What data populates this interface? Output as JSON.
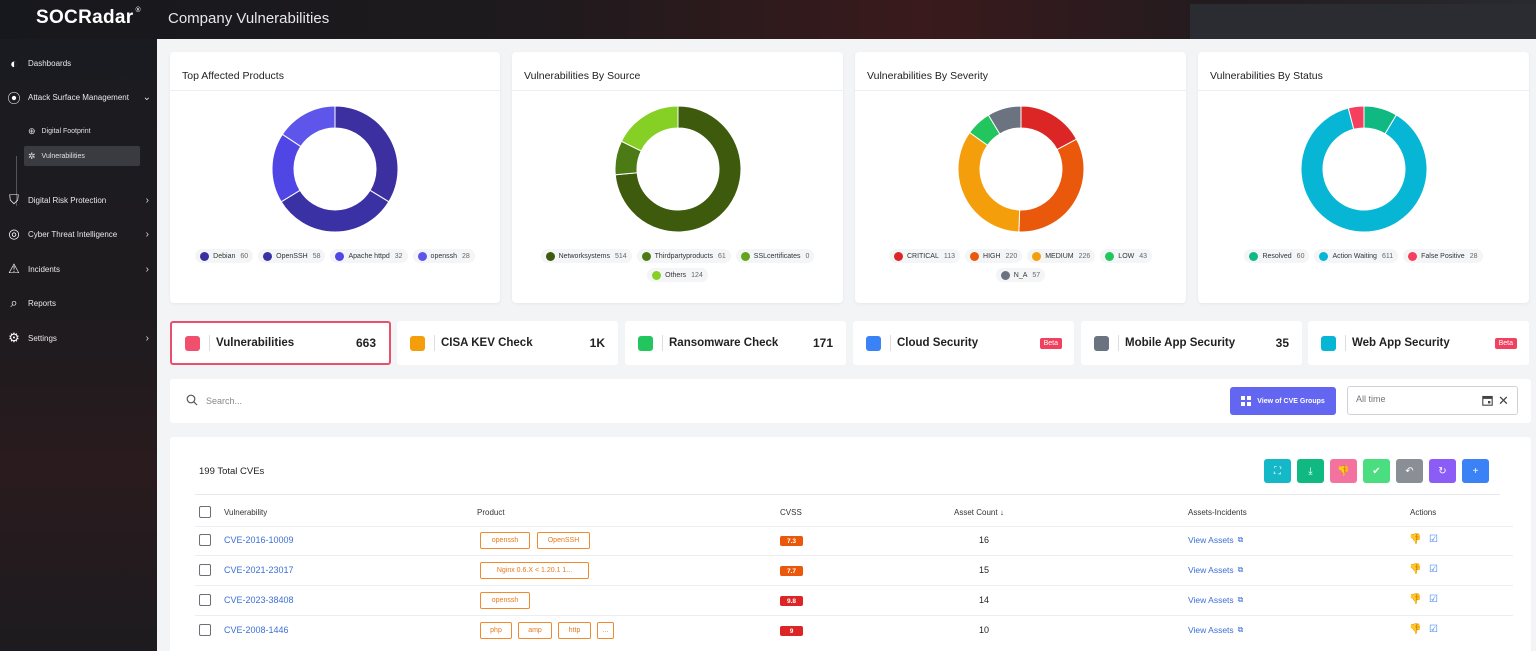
{
  "header": {
    "logo": "SOCRadar",
    "logo_mark": "®",
    "page_title": "Company Vulnerabilities"
  },
  "sidebar": {
    "items": [
      {
        "label": "Dashboards",
        "icon": "dashboard-icon"
      },
      {
        "label": "Attack Surface Management",
        "icon": "attack-surface-icon",
        "expanded": true
      },
      {
        "label": "Digital Risk Protection",
        "icon": "shield-icon"
      },
      {
        "label": "Cyber Threat Intelligence",
        "icon": "target-icon"
      },
      {
        "label": "Incidents",
        "icon": "alert-icon"
      },
      {
        "label": "Reports",
        "icon": "reports-icon"
      },
      {
        "label": "Settings",
        "icon": "gear-icon"
      }
    ],
    "sub_items": [
      {
        "label": "Digital Footprint",
        "icon": "globe-icon"
      },
      {
        "label": "Vulnerabilities",
        "icon": "bug-icon",
        "active": true
      }
    ]
  },
  "chart_data": [
    {
      "type": "pie",
      "title": "Top Affected Products",
      "labels": [
        "Debian",
        "OpenSSH",
        "Apache httpd",
        "openssh"
      ],
      "values": [
        60,
        58,
        32,
        28
      ],
      "colors": [
        "#3c2fa0",
        "#3a31a5",
        "#4f46e5",
        "#5e55ea"
      ]
    },
    {
      "type": "pie",
      "title": "Vulnerabilities By Source",
      "labels": [
        "Networksystems",
        "Thirdpartyproducts",
        "SSLcertificates",
        "Others"
      ],
      "values": [
        514,
        61,
        0,
        124
      ],
      "colors": [
        "#3d5a0d",
        "#4c7a14",
        "#64a31b",
        "#86cf24"
      ]
    },
    {
      "type": "pie",
      "title": "Vulnerabilities By Severity",
      "labels": [
        "CRITICAL",
        "HIGH",
        "MEDIUM",
        "LOW",
        "N_A"
      ],
      "values": [
        113,
        220,
        226,
        43,
        57
      ],
      "colors": [
        "#dc2626",
        "#ea580c",
        "#f59e0b",
        "#22c55e",
        "#6b7280"
      ]
    },
    {
      "type": "pie",
      "title": "Vulnerabilities By Status",
      "labels": [
        "Resolved",
        "Action Waiting",
        "False Positive"
      ],
      "values": [
        60,
        611,
        28
      ],
      "colors": [
        "#10b981",
        "#06b6d4",
        "#f43f5e"
      ]
    }
  ],
  "stats": [
    {
      "label": "Vulnerabilities",
      "count": "663",
      "color": "#f0506e",
      "active": true
    },
    {
      "label": "CISA KEV Check",
      "count": "1K",
      "color": "#f59e0b"
    },
    {
      "label": "Ransomware Check",
      "count": "171",
      "color": "#22c55e"
    },
    {
      "label": "Cloud Security",
      "badge": "Beta",
      "color": "#3b82f6"
    },
    {
      "label": "Mobile App Security",
      "count": "35",
      "color": "#6b7280"
    },
    {
      "label": "Web App Security",
      "badge": "Beta",
      "color": "#06b6d4"
    }
  ],
  "search": {
    "placeholder": "Search...",
    "cve_groups_label": "View of CVE Groups",
    "date_placeholder": "All time"
  },
  "table": {
    "total_label": "199 Total CVEs",
    "columns": [
      "Vulnerability",
      "Product",
      "CVSS",
      "Asset Count",
      "Assets-Incidents",
      "Actions"
    ],
    "sort_indicator": "↓",
    "view_assets_label": "View Assets",
    "toolbar": [
      {
        "icon": "scan-icon",
        "color": "#14b8c7"
      },
      {
        "icon": "download-icon",
        "color": "#10b981"
      },
      {
        "icon": "thumbs-down-icon",
        "color": "#f472a0"
      },
      {
        "icon": "check-icon",
        "color": "#4ade80"
      },
      {
        "icon": "undo-icon",
        "color": "#8a8f96"
      },
      {
        "icon": "refresh-icon",
        "color": "#8b5cf6"
      },
      {
        "icon": "plus-icon",
        "color": "#3b82f6"
      }
    ],
    "rows": [
      {
        "cve": "CVE-2016-10009",
        "products": [
          "openssh",
          "OpenSSH"
        ],
        "cvss": "7.3",
        "cvss_color": "#ea580c",
        "asset_count": "16"
      },
      {
        "cve": "CVE-2021-23017",
        "products": [
          "Nginx 0.6.X < 1.20.1 1..."
        ],
        "cvss": "7.7",
        "cvss_color": "#ea580c",
        "asset_count": "15"
      },
      {
        "cve": "CVE-2023-38408",
        "products": [
          "openssh"
        ],
        "cvss": "9.8",
        "cvss_color": "#dc2626",
        "asset_count": "14"
      },
      {
        "cve": "CVE-2008-1446",
        "products": [
          "php",
          "amp",
          "http",
          "..."
        ],
        "cvss": "9",
        "cvss_color": "#dc2626",
        "asset_count": "10"
      }
    ]
  }
}
